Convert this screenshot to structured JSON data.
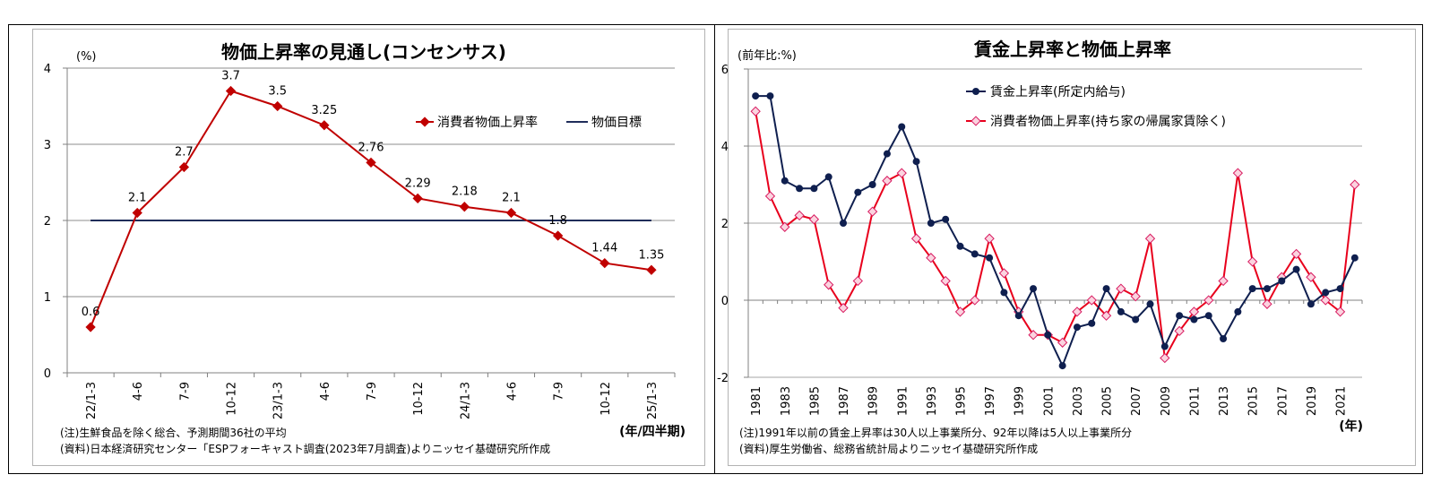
{
  "chart_data": [
    {
      "type": "line",
      "title": "物価上昇率の見通し(コンセンサス)",
      "ylabel": "(%)",
      "xlabel": "(年/四半期)",
      "ylim": [
        0,
        4
      ],
      "yticks": [
        "0",
        "1",
        "2",
        "3",
        "4"
      ],
      "categories": [
        "22/1-3",
        "4-6",
        "7-9",
        "10-12",
        "23/1-3",
        "4-6",
        "7-9",
        "10-12",
        "24/1-3",
        "4-6",
        "7-9",
        "10-12",
        "25/1-3"
      ],
      "series": [
        {
          "name": "消費者物価上昇率",
          "color": "#c00000",
          "values": [
            0.6,
            2.1,
            2.7,
            3.7,
            3.5,
            3.25,
            2.76,
            2.29,
            2.18,
            2.1,
            1.8,
            1.44,
            1.35
          ],
          "labels": [
            "0.6",
            "2.1",
            "2.7",
            "3.7",
            "3.5",
            "3.25",
            "2.76",
            "2.29",
            "2.18",
            "2.1",
            "1.8",
            "1.44",
            "1.35"
          ]
        },
        {
          "name": "物価目標",
          "color": "#1f2d5a",
          "values": [
            2,
            2,
            2,
            2,
            2,
            2,
            2,
            2,
            2,
            2,
            2,
            2,
            2
          ]
        }
      ],
      "grid": true,
      "legend_position": "top-right",
      "notes": [
        "(注)生鮮食品を除く総合、予測期間36社の平均",
        "(資料)日本経済研究センター「ESPフォーキャスト調査(2023年7月調査)よりニッセイ基礎研究所作成"
      ]
    },
    {
      "type": "line",
      "title": "賃金上昇率と物価上昇率",
      "ylabel": "(前年比:%)",
      "xlabel": "(年)",
      "ylim": [
        -2,
        6
      ],
      "yticks": [
        "-2",
        "0",
        "2",
        "4",
        "6"
      ],
      "x": [
        1981,
        1982,
        1983,
        1984,
        1985,
        1986,
        1987,
        1988,
        1989,
        1990,
        1991,
        1992,
        1993,
        1994,
        1995,
        1996,
        1997,
        1998,
        1999,
        2000,
        2001,
        2002,
        2003,
        2004,
        2005,
        2006,
        2007,
        2008,
        2009,
        2010,
        2011,
        2012,
        2013,
        2014,
        2015,
        2016,
        2017,
        2018,
        2019,
        2020,
        2021,
        2022
      ],
      "xtick_labels": [
        "1981",
        "1983",
        "1985",
        "1987",
        "1989",
        "1991",
        "1993",
        "1995",
        "1997",
        "1999",
        "2001",
        "2003",
        "2005",
        "2007",
        "2009",
        "2011",
        "2013",
        "2015",
        "2017",
        "2019",
        "2021"
      ],
      "series": [
        {
          "name": "賃金上昇率(所定内給与)",
          "color": "#0f1f4f",
          "values": [
            5.3,
            5.3,
            3.1,
            2.9,
            2.9,
            3.2,
            2.0,
            2.8,
            3.0,
            3.8,
            4.5,
            3.6,
            2.0,
            2.1,
            1.4,
            1.2,
            1.1,
            0.2,
            -0.4,
            0.3,
            -0.9,
            -1.7,
            -0.7,
            -0.6,
            0.3,
            -0.3,
            -0.5,
            -0.1,
            -1.2,
            -0.4,
            -0.5,
            -0.4,
            -1.0,
            -0.3,
            0.3,
            0.3,
            0.5,
            0.8,
            -0.1,
            0.2,
            0.3,
            1.1
          ]
        },
        {
          "name": "消費者物価上昇率(持ち家の帰属家賃除く)",
          "color": "#e8001c",
          "values": [
            4.9,
            2.7,
            1.9,
            2.2,
            2.1,
            0.4,
            -0.2,
            0.5,
            2.3,
            3.1,
            3.3,
            1.6,
            1.1,
            0.5,
            -0.3,
            0.0,
            1.6,
            0.7,
            -0.3,
            -0.9,
            -0.9,
            -1.1,
            -0.3,
            0.0,
            -0.4,
            0.3,
            0.1,
            1.6,
            -1.5,
            -0.8,
            -0.3,
            0.0,
            0.5,
            3.3,
            1.0,
            -0.1,
            0.6,
            1.2,
            0.6,
            0.0,
            -0.3,
            3.0
          ]
        }
      ],
      "grid": true,
      "legend_position": "top-right",
      "notes": [
        "(注)1991年以前の賃金上昇率は30人以上事業所分、92年以降は5人以上事業所分",
        "(資料)厚生労働省、総務省統計局よりニッセイ基礎研究所作成"
      ]
    }
  ]
}
